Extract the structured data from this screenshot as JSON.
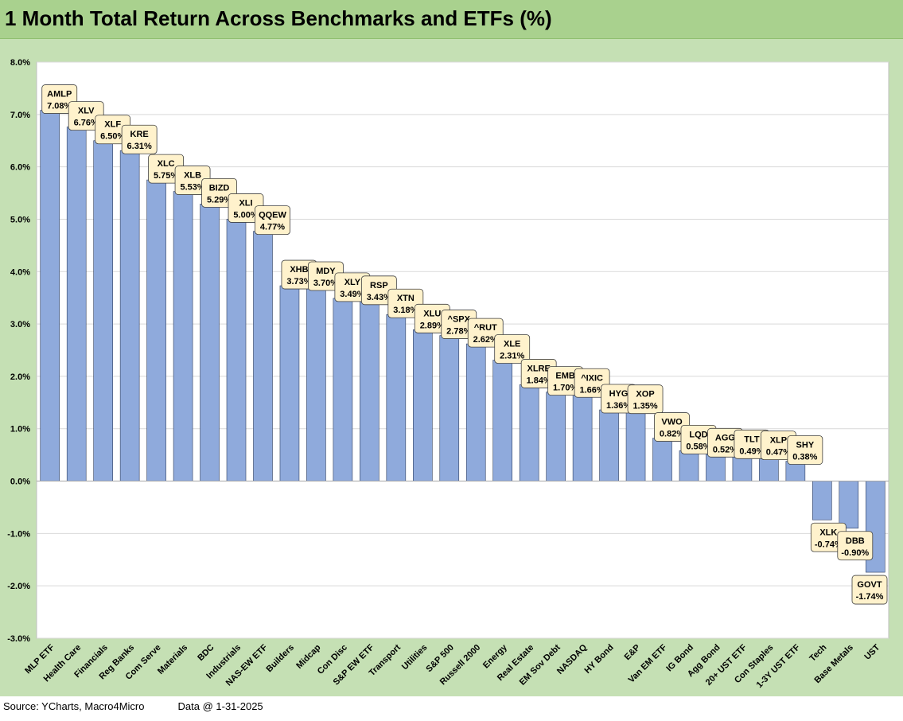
{
  "title": "1 Month Total Return Across Benchmarks and ETFs (%)",
  "footer": {
    "source": "Source: YCharts, Macro4Micro",
    "date_note": "Data @ 1-31-2025"
  },
  "colors": {
    "bar": "#8faadc",
    "bar_stroke": "#2f3f5f",
    "label_bg": "#fff2cc",
    "title_bg": "#a9d18e",
    "frame_bg": "#c5e0b4"
  },
  "chart_data": {
    "type": "bar",
    "title": "1 Month Total Return Across Benchmarks and ETFs (%)",
    "ylim": [
      -3.0,
      8.0
    ],
    "yticks": [
      "-3.0%",
      "-2.0%",
      "-1.0%",
      "0.0%",
      "1.0%",
      "2.0%",
      "3.0%",
      "4.0%",
      "5.0%",
      "6.0%",
      "7.0%",
      "8.0%"
    ],
    "ytick_values": [
      -3,
      -2,
      -1,
      0,
      1,
      2,
      3,
      4,
      5,
      6,
      7,
      8
    ],
    "grid": true,
    "categories": [
      "MLP ETF",
      "Health Care",
      "Financials",
      "Reg Banks",
      "Com Serve",
      "Materials",
      "BDC",
      "Industrials",
      "NAS-EW ETF",
      "Builders",
      "Midcap",
      "Con Disc",
      "S&P EW ETF",
      "Transport",
      "Utilities",
      "S&P 500",
      "Russell 2000",
      "Energy",
      "Real Estate",
      "EM Sov Debt",
      "NASDAQ",
      "HY Bond",
      "E&P",
      "Van EM ETF",
      "IG Bond",
      "Agg Bond",
      "20+ UST ETF",
      "Con Staples",
      "1-3Y UST ETF",
      "Tech",
      "Base Metals",
      "UST"
    ],
    "tickers": [
      "AMLP",
      "XLV",
      "XLF",
      "KRE",
      "XLC",
      "XLB",
      "BIZD",
      "XLI",
      "QQEW",
      "XHB",
      "MDY",
      "XLY",
      "RSP",
      "XTN",
      "XLU",
      "^SPX",
      "^RUT",
      "XLE",
      "XLRE",
      "EMB",
      "^IXIC",
      "HYG",
      "XOP",
      "VWO",
      "LQD",
      "AGG",
      "TLT",
      "XLP",
      "SHY",
      "XLK",
      "DBB",
      "GOVT"
    ],
    "value_labels": [
      "7.08%",
      "6.76%",
      "6.50%",
      "6.31%",
      "5.75%",
      "5.53%",
      "5.29%",
      "5.00%",
      "4.77%",
      "3.73%",
      "3.70%",
      "3.49%",
      "3.43%",
      "3.18%",
      "2.89%",
      "2.78%",
      "2.62%",
      "2.31%",
      "1.84%",
      "1.70%",
      "1.66%",
      "1.36%",
      "1.35%",
      "0.82%",
      "0.58%",
      "0.52%",
      "0.49%",
      "0.47%",
      "0.38%",
      "-0.74%",
      "-0.90%",
      "-1.74%"
    ],
    "values": [
      7.08,
      6.76,
      6.5,
      6.31,
      5.75,
      5.53,
      5.29,
      5.0,
      4.77,
      3.73,
      3.7,
      3.49,
      3.43,
      3.18,
      2.89,
      2.78,
      2.62,
      2.31,
      1.84,
      1.7,
      1.66,
      1.36,
      1.35,
      0.82,
      0.58,
      0.52,
      0.49,
      0.47,
      0.38,
      -0.74,
      -0.9,
      -1.74
    ]
  }
}
